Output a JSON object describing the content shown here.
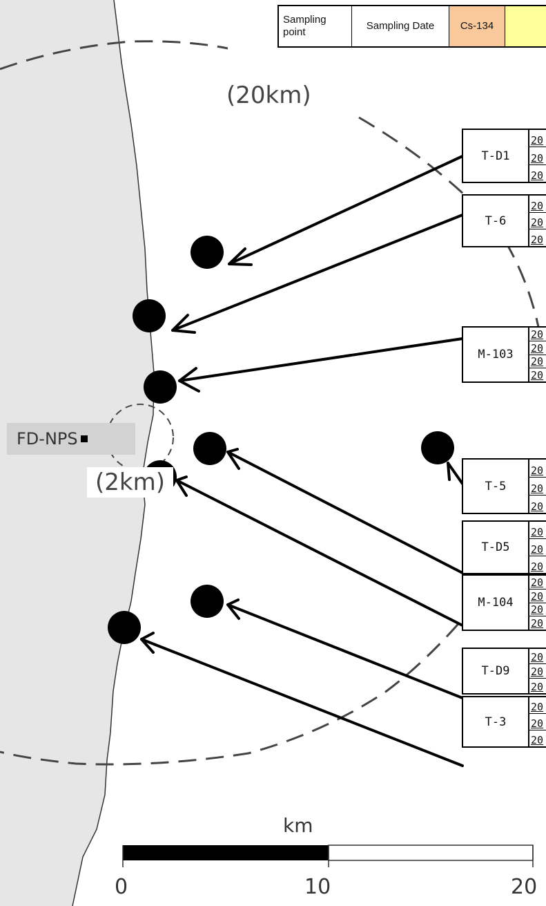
{
  "table_header": {
    "sampling_point": "Sampling point",
    "sampling_date": "Sampling Date",
    "cs134": "Cs-134",
    "next_col": ""
  },
  "map_labels": {
    "ring_20km": "(20km)",
    "ring_2km": "(2km)",
    "plant": "FD-NPS"
  },
  "scale_bar": {
    "unit": "km",
    "ticks": [
      "0",
      "10",
      "20"
    ]
  },
  "sampling_points": [
    {
      "id": "T-D1",
      "rows": [
        "20",
        "20",
        "20"
      ]
    },
    {
      "id": "T-6",
      "rows": [
        "20",
        "20",
        "20"
      ]
    },
    {
      "id": "M-103",
      "rows": [
        "20",
        "20",
        "20",
        "20"
      ]
    },
    {
      "id": "T-5",
      "rows": [
        "20",
        "20",
        "20"
      ]
    },
    {
      "id": "T-D5",
      "rows": [
        "20",
        "20",
        "20"
      ]
    },
    {
      "id": "M-104",
      "rows": [
        "20",
        "20",
        "20",
        "20"
      ]
    },
    {
      "id": "T-D9",
      "rows": [
        "20",
        "20",
        "20"
      ]
    },
    {
      "id": "T-3",
      "rows": [
        "20",
        "20",
        "20"
      ]
    }
  ],
  "colors": {
    "sea": "#e6e6e6",
    "cs134_header": "#f9c89b",
    "next_header": "#ffff9a"
  }
}
